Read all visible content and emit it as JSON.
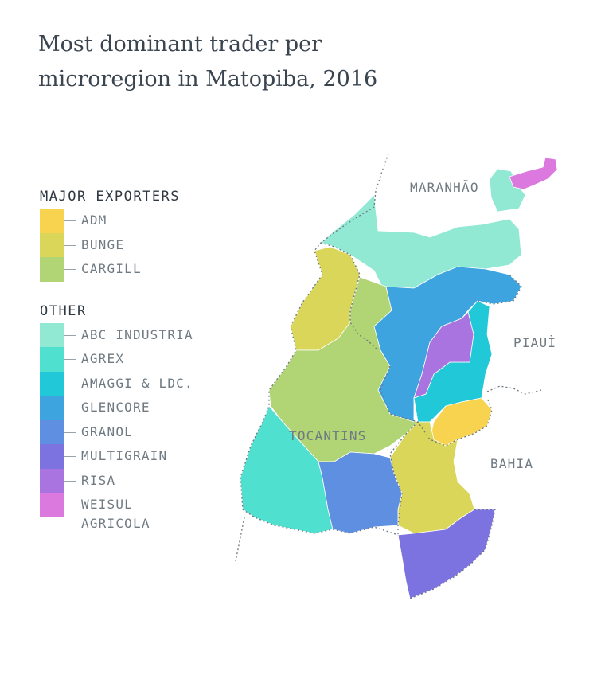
{
  "title": "Most dominant trader per microregion in Matopiba, 2016",
  "legend": {
    "major_heading": "MAJOR EXPORTERS",
    "major": [
      {
        "label": "ADM",
        "color": "#f8d34f"
      },
      {
        "label": "BUNGE",
        "color": "#d9d65a"
      },
      {
        "label": "CARGILL",
        "color": "#b1d474"
      }
    ],
    "other_heading": "OTHER",
    "other": [
      {
        "label": "ABC INDUSTRIA",
        "color": "#91e9d4"
      },
      {
        "label": "AGREX",
        "color": "#4fe0cf"
      },
      {
        "label": "AMAGGI & LDC.",
        "color": "#21c8d8"
      },
      {
        "label": "GLENCORE",
        "color": "#3ea4e0"
      },
      {
        "label": "GRANOL",
        "color": "#5e8fe0"
      },
      {
        "label": "MULTIGRAIN",
        "color": "#7c72e0"
      },
      {
        "label": "RISA",
        "color": "#a974e0"
      },
      {
        "label": "WEISUL AGRICOLA",
        "color": "#dc79de"
      }
    ]
  },
  "states": {
    "maranhao": "MARANHÃO",
    "piaui": "PIAUÌ",
    "tocantins": "TOCANTINS",
    "bahia": "BAHIA"
  }
}
